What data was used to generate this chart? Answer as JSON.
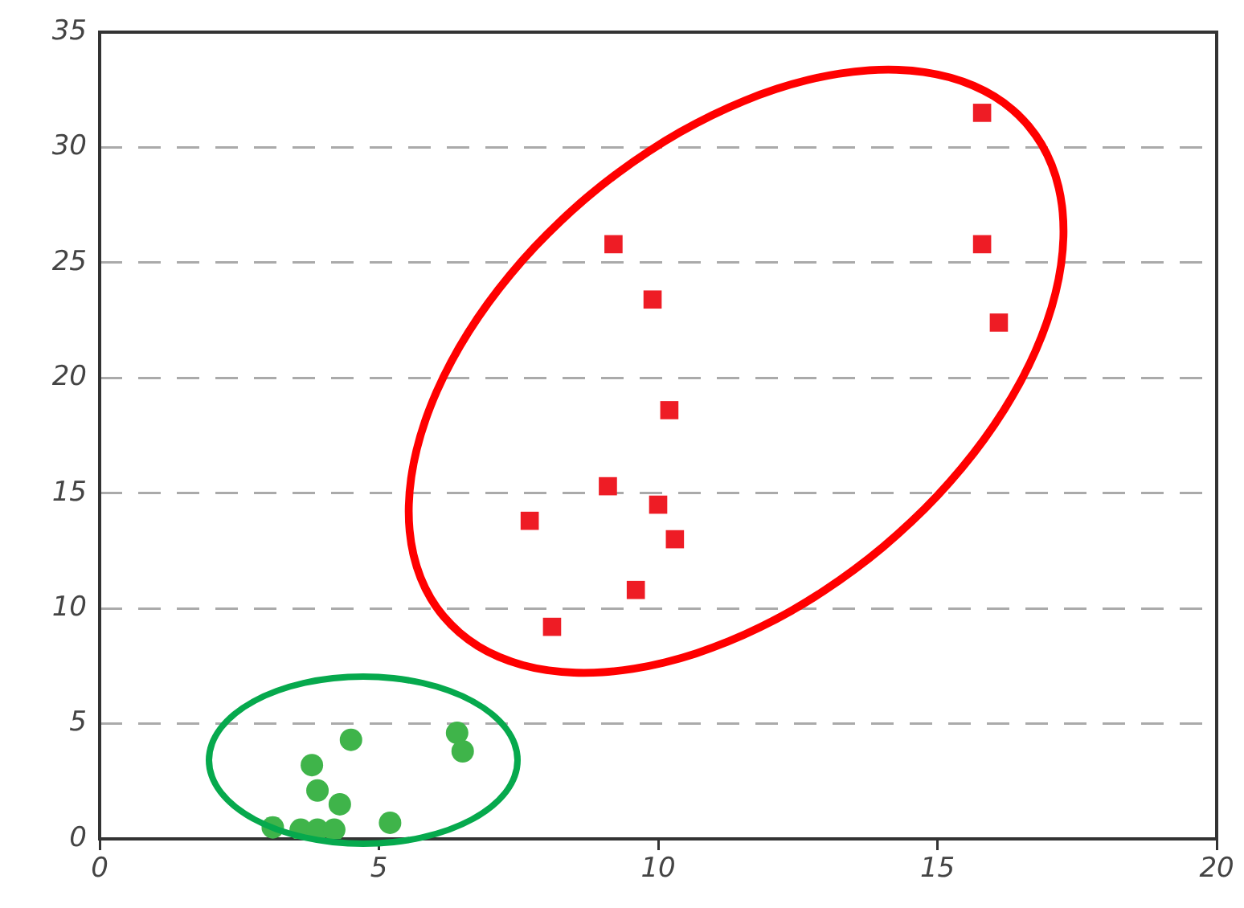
{
  "chart_data": {
    "type": "scatter",
    "xlim": [
      0,
      20
    ],
    "xticks": [
      0,
      5,
      10,
      15,
      20
    ],
    "ylim": [
      0,
      35
    ],
    "yticks": [
      0,
      5,
      10,
      15,
      20,
      25,
      30,
      35
    ],
    "grid": "y",
    "legend": false,
    "series": [
      {
        "color": "#ee1c25",
        "marker": "square",
        "x": [
          15.8,
          15.8,
          16.1,
          9.2,
          9.9,
          10.2,
          9.1,
          10.0,
          10.3,
          7.7,
          9.6,
          8.1
        ],
        "values": [
          31.5,
          25.8,
          22.4,
          25.8,
          23.4,
          18.6,
          15.3,
          14.5,
          13.0,
          13.8,
          10.8,
          9.2
        ]
      },
      {
        "color": "#3fb44a",
        "marker": "circle",
        "x": [
          3.1,
          3.6,
          3.9,
          4.2,
          3.8,
          3.9,
          4.3,
          4.5,
          5.2,
          6.4,
          6.5
        ],
        "values": [
          0.5,
          0.4,
          0.4,
          0.4,
          3.2,
          2.1,
          1.5,
          4.3,
          0.7,
          4.6,
          3.8
        ]
      }
    ]
  }
}
